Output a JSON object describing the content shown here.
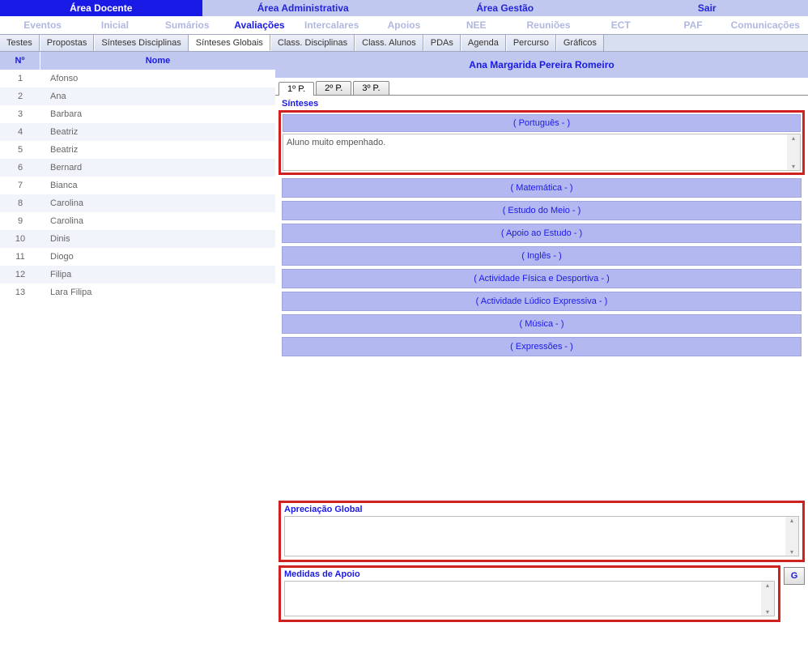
{
  "area_tabs": {
    "docente": "Área Docente",
    "administrativa": "Área Administrativa",
    "gestao": "Área Gestão",
    "sair": "Sair"
  },
  "sub_nav": {
    "eventos": "Eventos",
    "inicial": "Inicial",
    "sumarios": "Sumários",
    "avaliacoes": "Avaliações",
    "intercalares": "Intercalares",
    "apoios": "Apoios",
    "nee": "NEE",
    "reunioes": "Reuniões",
    "ect": "ECT",
    "paf": "PAF",
    "comunicacoes": "Comunicações"
  },
  "toolbar": {
    "testes": "Testes",
    "propostas": "Propostas",
    "sinteses_disc": "Sínteses Disciplinas",
    "sinteses_globais": "Sínteses Globais",
    "class_disc": "Class. Disciplinas",
    "class_alunos": "Class. Alunos",
    "pdas": "PDAs",
    "agenda": "Agenda",
    "percurso": "Percurso",
    "graficos": "Gráficos"
  },
  "table_header": {
    "num": "Nº",
    "name": "Nome"
  },
  "students": [
    {
      "n": "1",
      "name": "Afonso"
    },
    {
      "n": "2",
      "name": "Ana"
    },
    {
      "n": "3",
      "name": "Barbara"
    },
    {
      "n": "4",
      "name": "Beatriz"
    },
    {
      "n": "5",
      "name": "Beatriz"
    },
    {
      "n": "6",
      "name": "Bernard"
    },
    {
      "n": "7",
      "name": "Bianca"
    },
    {
      "n": "8",
      "name": "Carolina"
    },
    {
      "n": "9",
      "name": "Carolina"
    },
    {
      "n": "10",
      "name": "Dinis"
    },
    {
      "n": "11",
      "name": "Diogo"
    },
    {
      "n": "12",
      "name": "Filipa"
    },
    {
      "n": "13",
      "name": "Lara Filipa"
    }
  ],
  "selected_student": "Ana Margarida Pereira Romeiro",
  "periods": {
    "p1": "1º P.",
    "p2": "2º P.",
    "p3": "3º P."
  },
  "sinteses": {
    "title": "Sínteses",
    "expanded_subject": "( Português - )",
    "expanded_text": "Aluno muito empenhado.",
    "subjects": [
      "( Matemática - )",
      "( Estudo do Meio - )",
      "( Apoio ao Estudo - )",
      "( Inglês - )",
      "( Actividade Física e Desportiva - )",
      "( Actividade Lúdico Expressiva - )",
      "( Música - )",
      "( Expressões - )"
    ]
  },
  "apreciacao_label": "Apreciação Global",
  "medidas_label": "Medidas de Apoio",
  "g_button": "G"
}
